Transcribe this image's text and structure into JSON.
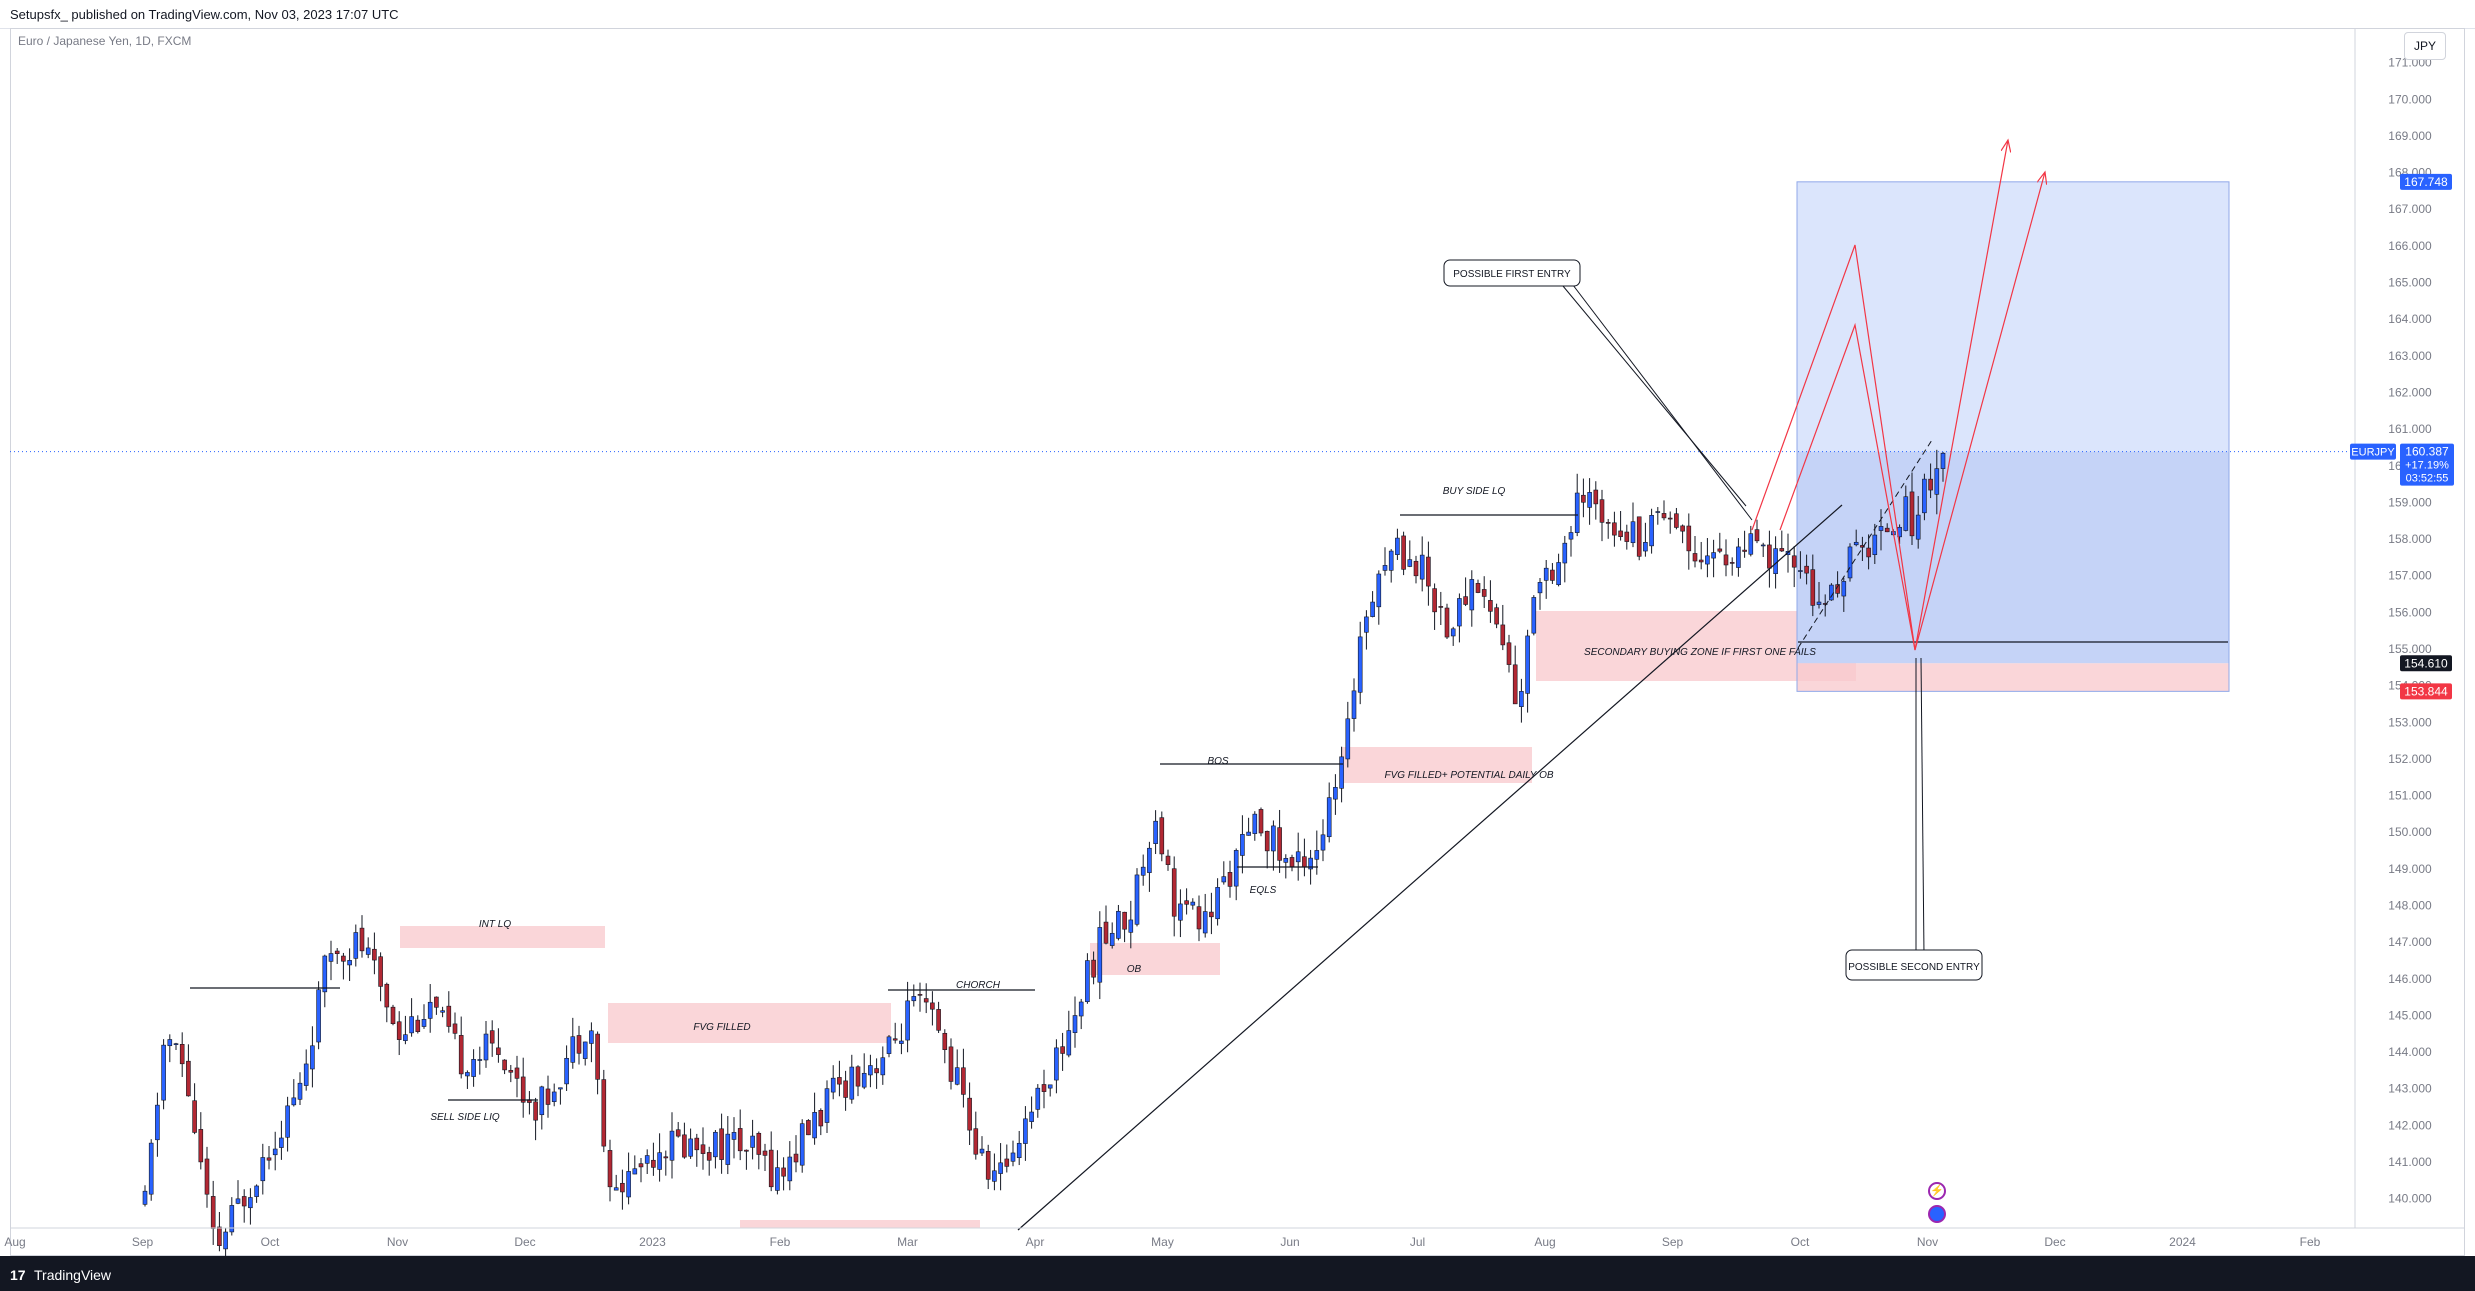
{
  "header": {
    "publish_line": "Setupsfx_ published on TradingView.com, Nov 03, 2023 17:07 UTC"
  },
  "symbol_label": "Euro / Japanese Yen, 1D, FXCM",
  "currency_button": "JPY",
  "footer": {
    "brand": "TradingView",
    "logo": "17"
  },
  "colors": {
    "up": "#2962ff",
    "down": "#b22833",
    "line": "#131722",
    "projection": "#f23645",
    "zone_red": "#f8c8cc",
    "zone_blue": "#c5d3f7"
  },
  "chart_data": {
    "type": "candlestick",
    "symbol": "EURJPY",
    "timeframe": "1D",
    "ylim": [
      139.2,
      171.4
    ],
    "y_ticks": [
      140,
      141,
      142,
      143,
      144,
      145,
      146,
      147,
      148,
      149,
      150,
      151,
      152,
      153,
      154,
      155,
      156,
      157,
      158,
      159,
      160,
      161,
      162,
      163,
      164,
      165,
      166,
      167,
      168,
      169,
      170,
      171
    ],
    "x_labels": [
      "Aug",
      "Sep",
      "Oct",
      "Nov",
      "Dec",
      "2023",
      "Feb",
      "Mar",
      "Apr",
      "May",
      "Jun",
      "Jul",
      "Aug",
      "Sep",
      "Oct",
      "Nov",
      "Dec",
      "2024",
      "Feb"
    ],
    "price_labels": {
      "target": "167.748",
      "stop": "153.844",
      "entry": "154.610",
      "symbol": "EURJPY",
      "last": "160.387",
      "change": "+17.19%",
      "countdown": "03:52:55"
    },
    "key_levels": {
      "target": 167.748,
      "entry": 154.61,
      "stop": 153.844,
      "last": 160.387
    },
    "annotations": [
      "POSSIBLE FIRST ENTRY",
      "POSSIBLE SECOND ENTRY",
      "BUY SIDE LQ",
      "SECONDARY BUYING ZONE IF FIRST ONE FAILS",
      "BOS",
      "FVG FILLED+ POTENTIAL DAILY OB",
      "EQLS",
      "OB",
      "CHORCH",
      "FVG FILLED",
      "INT LQ",
      "SELL SIDE LIQ"
    ],
    "anchors": [
      [
        145,
        139.8
      ],
      [
        165,
        144.5
      ],
      [
        185,
        143.5
      ],
      [
        215,
        138.5
      ],
      [
        260,
        141.0
      ],
      [
        300,
        143.0
      ],
      [
        330,
        146.8
      ],
      [
        360,
        147.0
      ],
      [
        400,
        144.6
      ],
      [
        430,
        145.3
      ],
      [
        460,
        143.8
      ],
      [
        500,
        144.2
      ],
      [
        520,
        143.0
      ],
      [
        540,
        142.5
      ],
      [
        570,
        144.0
      ],
      [
        590,
        145.0
      ],
      [
        610,
        140.0
      ],
      [
        640,
        141.0
      ],
      [
        660,
        141.5
      ],
      [
        700,
        141.5
      ],
      [
        740,
        141.5
      ],
      [
        780,
        140.6
      ],
      [
        810,
        142.0
      ],
      [
        850,
        143.4
      ],
      [
        890,
        144.0
      ],
      [
        910,
        145.2
      ],
      [
        930,
        145.0
      ],
      [
        960,
        143.0
      ],
      [
        980,
        141.0
      ],
      [
        1000,
        140.6
      ],
      [
        1030,
        142.5
      ],
      [
        1060,
        144.0
      ],
      [
        1080,
        145.5
      ],
      [
        1100,
        147.0
      ],
      [
        1130,
        147.8
      ],
      [
        1155,
        150.6
      ],
      [
        1175,
        148.0
      ],
      [
        1205,
        147.5
      ],
      [
        1230,
        149.0
      ],
      [
        1260,
        150.3
      ],
      [
        1290,
        149.0
      ],
      [
        1320,
        149.8
      ],
      [
        1345,
        152.0
      ],
      [
        1360,
        155.5
      ],
      [
        1375,
        157.0
      ],
      [
        1395,
        157.8
      ],
      [
        1420,
        157.3
      ],
      [
        1450,
        155.5
      ],
      [
        1475,
        157.0
      ],
      [
        1500,
        155.5
      ],
      [
        1520,
        153.2
      ],
      [
        1535,
        157.0
      ],
      [
        1560,
        157.5
      ],
      [
        1580,
        159.0
      ],
      [
        1610,
        158.7
      ],
      [
        1640,
        158.0
      ],
      [
        1665,
        159.0
      ],
      [
        1690,
        157.8
      ],
      [
        1720,
        157.5
      ],
      [
        1750,
        157.7
      ],
      [
        1780,
        157.3
      ],
      [
        1805,
        157.3
      ],
      [
        1820,
        155.8
      ],
      [
        1845,
        157.3
      ],
      [
        1875,
        158.0
      ],
      [
        1900,
        158.8
      ],
      [
        1915,
        158.5
      ],
      [
        1930,
        159.8
      ],
      [
        1945,
        160.4
      ]
    ]
  }
}
